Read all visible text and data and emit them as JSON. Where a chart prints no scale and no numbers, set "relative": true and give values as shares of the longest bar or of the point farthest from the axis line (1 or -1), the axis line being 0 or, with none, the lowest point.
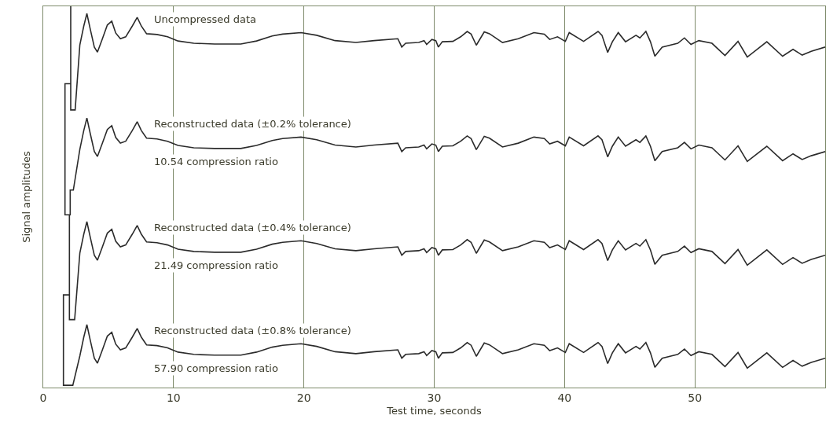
{
  "chart_data": {
    "type": "line",
    "relative": true,
    "xlabel": "Test time, seconds",
    "ylabel": "Signal amplitudes",
    "xlim": [
      0,
      60
    ],
    "xticks": [
      0,
      10,
      20,
      30,
      40,
      50
    ],
    "grid": "x",
    "legend": false,
    "marker": "none",
    "line_style": "solid",
    "annotations": [
      "10.54 compression ratio",
      "21.49 compression ratio",
      "57.90 compression ratio"
    ],
    "series": [
      {
        "name": "Uncompressed data",
        "color": "#2b2b2b",
        "x": [
          2.11,
          2.11,
          2.45,
          2.81,
          3.11,
          3.35,
          3.61,
          3.92,
          4.16,
          4.52,
          4.92,
          5.26,
          5.56,
          5.92,
          6.33,
          6.83,
          7.21,
          7.53,
          7.93,
          8.73,
          9.54,
          10.34,
          11.55,
          13.15,
          15.16,
          16.37,
          17.57,
          18.37,
          19.78,
          20.98,
          22.39,
          23.99,
          25.4,
          27.21,
          27.51,
          27.81,
          28.81,
          29.22,
          29.42,
          29.82,
          30.12,
          30.32,
          30.62,
          31.43,
          32.03,
          32.53,
          32.83,
          33.23,
          33.84,
          34.24,
          35.24,
          36.45,
          37.65,
          38.45,
          38.86,
          39.46,
          40.06,
          40.36,
          41.46,
          42.57,
          42.87,
          43.31,
          43.67,
          44.12,
          44.68,
          45.48,
          45.78,
          46.24,
          46.59,
          46.93,
          47.49,
          48.69,
          49.2,
          49.7,
          50.3,
          51.31,
          52.31,
          53.31,
          54.02,
          55.52,
          56.73,
          57.53,
          58.23,
          58.93,
          60
        ],
        "values": [
          1.0,
          0.728,
          0.728,
          0.899,
          0.948,
          0.981,
          0.94,
          0.893,
          0.88,
          0.913,
          0.951,
          0.961,
          0.93,
          0.915,
          0.92,
          0.948,
          0.971,
          0.948,
          0.928,
          0.926,
          0.92,
          0.909,
          0.903,
          0.901,
          0.901,
          0.909,
          0.922,
          0.927,
          0.931,
          0.924,
          0.91,
          0.905,
          0.91,
          0.915,
          0.893,
          0.903,
          0.905,
          0.91,
          0.9,
          0.913,
          0.91,
          0.893,
          0.907,
          0.908,
          0.92,
          0.934,
          0.927,
          0.898,
          0.933,
          0.928,
          0.905,
          0.915,
          0.931,
          0.927,
          0.913,
          0.92,
          0.908,
          0.931,
          0.908,
          0.934,
          0.924,
          0.879,
          0.907,
          0.931,
          0.907,
          0.924,
          0.917,
          0.934,
          0.907,
          0.869,
          0.893,
          0.903,
          0.917,
          0.9,
          0.91,
          0.903,
          0.871,
          0.908,
          0.867,
          0.907,
          0.869,
          0.887,
          0.872,
          0.882,
          0.893
        ]
      },
      {
        "name": "Reconstructed data (±0.2% tolerance)",
        "color": "#2b2b2b",
        "x": [
          2.11,
          1.67,
          1.67,
          2.07,
          2.07,
          2.31,
          2.81,
          3.11,
          3.35,
          3.61,
          3.92,
          4.16,
          4.52,
          4.92,
          5.26,
          5.56,
          5.92,
          6.33,
          6.83,
          7.21,
          7.53,
          7.93,
          8.73,
          9.54,
          10.34,
          11.55,
          13.15,
          15.16,
          16.37,
          17.57,
          18.37,
          19.78,
          20.98,
          22.39,
          23.99,
          25.4,
          27.21,
          27.51,
          27.81,
          28.81,
          29.22,
          29.42,
          29.82,
          30.12,
          30.32,
          30.62,
          31.43,
          32.03,
          32.53,
          32.83,
          33.23,
          33.84,
          34.24,
          35.24,
          36.45,
          37.65,
          38.45,
          38.86,
          39.46,
          40.06,
          40.36,
          41.46,
          42.57,
          42.87,
          43.31,
          43.67,
          44.12,
          44.68,
          45.48,
          45.78,
          46.24,
          46.59,
          46.93,
          47.49,
          48.69,
          49.2,
          49.7,
          50.3,
          51.31,
          52.31,
          53.31,
          54.02,
          55.52,
          56.73,
          57.53,
          58.23,
          58.93,
          60
        ],
        "values": [
          0.797,
          0.797,
          0.453,
          0.453,
          0.518,
          0.518,
          0.625,
          0.674,
          0.707,
          0.666,
          0.619,
          0.606,
          0.639,
          0.677,
          0.687,
          0.656,
          0.641,
          0.646,
          0.674,
          0.697,
          0.674,
          0.654,
          0.652,
          0.646,
          0.635,
          0.629,
          0.627,
          0.627,
          0.635,
          0.648,
          0.653,
          0.657,
          0.65,
          0.636,
          0.631,
          0.636,
          0.641,
          0.619,
          0.629,
          0.631,
          0.636,
          0.626,
          0.639,
          0.636,
          0.619,
          0.633,
          0.634,
          0.646,
          0.66,
          0.653,
          0.624,
          0.659,
          0.654,
          0.631,
          0.641,
          0.657,
          0.653,
          0.639,
          0.646,
          0.634,
          0.657,
          0.634,
          0.66,
          0.65,
          0.605,
          0.633,
          0.657,
          0.633,
          0.65,
          0.643,
          0.66,
          0.633,
          0.595,
          0.619,
          0.629,
          0.643,
          0.626,
          0.636,
          0.629,
          0.597,
          0.634,
          0.593,
          0.633,
          0.595,
          0.613,
          0.598,
          0.608,
          0.619
        ]
      },
      {
        "name": "Reconstructed data (±0.4% tolerance)",
        "color": "#2b2b2b",
        "x": [
          2.01,
          2.01,
          2.41,
          2.81,
          3.11,
          3.35,
          3.61,
          3.92,
          4.16,
          4.52,
          4.92,
          5.26,
          5.56,
          5.92,
          6.33,
          6.83,
          7.21,
          7.53,
          7.93,
          8.73,
          9.54,
          10.34,
          11.55,
          13.15,
          15.16,
          16.37,
          17.57,
          18.37,
          19.78,
          20.98,
          22.39,
          23.99,
          25.4,
          27.21,
          27.51,
          27.81,
          28.81,
          29.22,
          29.42,
          29.82,
          30.12,
          30.32,
          30.62,
          31.43,
          32.03,
          32.53,
          32.83,
          33.23,
          33.84,
          34.24,
          35.24,
          36.45,
          37.65,
          38.45,
          38.86,
          39.46,
          40.06,
          40.36,
          41.46,
          42.57,
          42.87,
          43.31,
          43.67,
          44.12,
          44.68,
          45.48,
          45.78,
          46.24,
          46.59,
          46.93,
          47.49,
          48.69,
          49.2,
          49.7,
          50.3,
          51.31,
          52.31,
          53.31,
          54.02,
          55.52,
          56.73,
          57.53,
          58.23,
          58.93,
          60
        ],
        "values": [
          0.453,
          0.178,
          0.178,
          0.353,
          0.402,
          0.435,
          0.394,
          0.347,
          0.334,
          0.367,
          0.405,
          0.415,
          0.384,
          0.369,
          0.374,
          0.402,
          0.425,
          0.402,
          0.382,
          0.38,
          0.374,
          0.363,
          0.357,
          0.355,
          0.355,
          0.363,
          0.376,
          0.381,
          0.385,
          0.378,
          0.364,
          0.359,
          0.364,
          0.369,
          0.347,
          0.357,
          0.359,
          0.364,
          0.354,
          0.367,
          0.364,
          0.347,
          0.361,
          0.362,
          0.374,
          0.388,
          0.381,
          0.352,
          0.387,
          0.382,
          0.359,
          0.369,
          0.385,
          0.381,
          0.367,
          0.374,
          0.362,
          0.385,
          0.362,
          0.388,
          0.378,
          0.333,
          0.361,
          0.385,
          0.361,
          0.378,
          0.371,
          0.388,
          0.361,
          0.323,
          0.347,
          0.357,
          0.371,
          0.354,
          0.364,
          0.357,
          0.325,
          0.362,
          0.321,
          0.361,
          0.323,
          0.341,
          0.326,
          0.336,
          0.347
        ]
      },
      {
        "name": "Reconstructed data (±0.8% tolerance)",
        "color": "#2b2b2b",
        "x": [
          2.01,
          1.55,
          1.55,
          2.27,
          2.81,
          3.11,
          3.35,
          3.61,
          3.92,
          4.16,
          4.52,
          4.92,
          5.26,
          5.56,
          5.92,
          6.33,
          6.83,
          7.21,
          7.53,
          7.93,
          8.73,
          9.54,
          10.34,
          11.55,
          13.15,
          15.16,
          16.37,
          17.57,
          18.37,
          19.78,
          20.98,
          22.39,
          23.99,
          25.4,
          27.21,
          27.51,
          27.81,
          28.81,
          29.22,
          29.42,
          29.82,
          30.12,
          30.32,
          30.62,
          31.43,
          32.03,
          32.53,
          32.83,
          33.23,
          33.84,
          34.24,
          35.24,
          36.45,
          37.65,
          38.45,
          38.86,
          39.46,
          40.06,
          40.36,
          41.46,
          42.57,
          42.87,
          43.31,
          43.67,
          44.12,
          44.68,
          45.48,
          45.78,
          46.24,
          46.59,
          46.93,
          47.49,
          48.69,
          49.2,
          49.7,
          50.3,
          51.31,
          52.31,
          53.31,
          54.02,
          55.52,
          56.73,
          57.53,
          58.23,
          58.93,
          60
        ],
        "values": [
          0.243,
          0.243,
          0.006,
          0.006,
          0.083,
          0.132,
          0.165,
          0.124,
          0.077,
          0.064,
          0.097,
          0.135,
          0.145,
          0.114,
          0.099,
          0.104,
          0.132,
          0.155,
          0.132,
          0.112,
          0.11,
          0.104,
          0.093,
          0.087,
          0.085,
          0.085,
          0.093,
          0.106,
          0.111,
          0.115,
          0.108,
          0.094,
          0.089,
          0.094,
          0.099,
          0.077,
          0.087,
          0.089,
          0.094,
          0.084,
          0.097,
          0.094,
          0.077,
          0.091,
          0.092,
          0.104,
          0.118,
          0.111,
          0.082,
          0.117,
          0.112,
          0.089,
          0.099,
          0.115,
          0.111,
          0.097,
          0.104,
          0.092,
          0.115,
          0.092,
          0.118,
          0.108,
          0.063,
          0.091,
          0.115,
          0.091,
          0.108,
          0.101,
          0.118,
          0.091,
          0.053,
          0.077,
          0.087,
          0.101,
          0.084,
          0.094,
          0.087,
          0.055,
          0.092,
          0.051,
          0.091,
          0.053,
          0.071,
          0.056,
          0.066,
          0.077
        ]
      }
    ]
  }
}
